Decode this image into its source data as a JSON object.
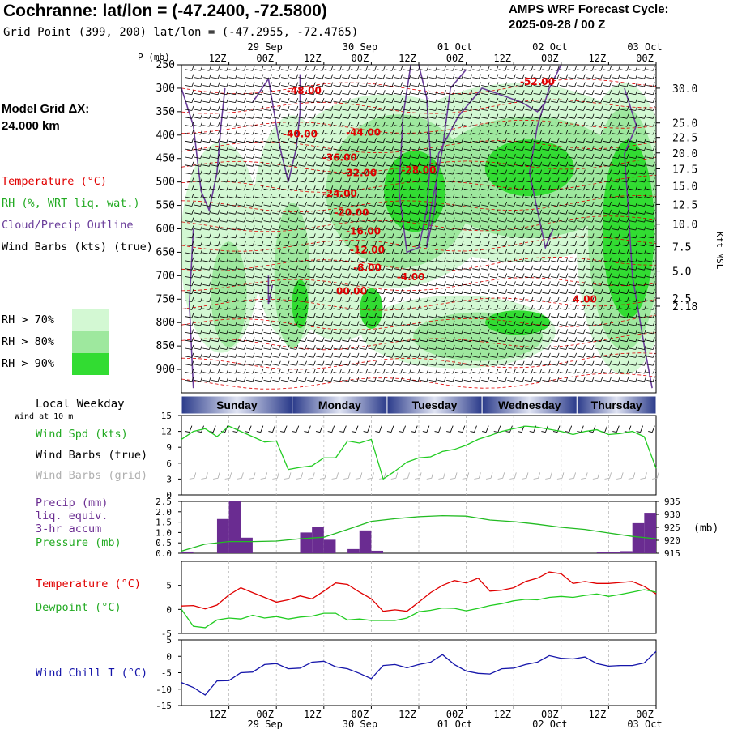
{
  "header": {
    "title": "Cochranne:  lat/lon = (-47.2400, -72.5800)",
    "subtitle": "Grid Point (399, 200) lat/lon = (-47.2955, -72.4765)",
    "cycle_label": "AMPS WRF Forecast Cycle:",
    "cycle_value": "2025-09-28 / 00  Z"
  },
  "sidebar": {
    "model_grid_label": "Model Grid ΔX:",
    "model_grid_value": " 24.000 km",
    "legend_temperature": "Temperature (°C)",
    "legend_rh": "RH (%, WRT liq. wat.)",
    "legend_cloud": "Cloud/Precip Outline",
    "legend_wind": "Wind Barbs (kts) (true)",
    "rh_key": [
      "RH > 70%",
      "RH > 80%",
      "RH > 90%"
    ],
    "local_weekday": "Local Weekday",
    "wind_at": "Wind at 10 m",
    "wind_spd": "Wind Spd (kts)",
    "wind_barbs_true": "Wind Barbs (true)",
    "wind_barbs_grid": "Wind Barbs (grid)",
    "precip": "Precip (mm)",
    "liq_equiv": "liq. equiv.",
    "accum": "3-hr accum",
    "pressure": "Pressure (mb)",
    "temp_panel": "Temperature (°C)",
    "dewpoint_panel": "Dewpoint (°C)",
    "windchill_panel": "Wind Chill T (°C)"
  },
  "colors": {
    "temperature": "#e00000",
    "rh70": "#d3f8d3",
    "rh80": "#9ee89e",
    "rh90": "#32dc32",
    "cloud": "#6a3d9a",
    "precip_bar": "#6a2c91",
    "pressure": "#22bb22",
    "dewpoint": "#22cc22",
    "windchill": "#1515aa",
    "grid_barb": "#aaaaaa"
  },
  "chart_data": [
    {
      "type": "heatmap",
      "title": "Vertical cross-section",
      "ylabel": "P (mb)",
      "y2label": "Kft MSL",
      "ylim": [
        250,
        950
      ],
      "pressure_ticks": [
        250,
        300,
        350,
        400,
        450,
        500,
        550,
        600,
        650,
        700,
        750,
        800,
        850,
        900
      ],
      "pressure_tick_labels": [
        "250",
        "300",
        "350",
        "400",
        "450",
        "500",
        "550",
        "600",
        "650",
        "700",
        "750",
        "800",
        "850",
        "900"
      ],
      "height_ticks": [
        {
          "p": 300,
          "label": "30.0"
        },
        {
          "p": 374,
          "label": "25.0"
        },
        {
          "p": 405,
          "label": "22.5"
        },
        {
          "p": 438,
          "label": "20.0"
        },
        {
          "p": 472,
          "label": "17.5"
        },
        {
          "p": 508,
          "label": "15.0"
        },
        {
          "p": 548,
          "label": "12.5"
        },
        {
          "p": 590,
          "label": "10.0"
        },
        {
          "p": 638,
          "label": "7.5"
        },
        {
          "p": 690,
          "label": "5.0"
        },
        {
          "p": 748,
          "label": "2.5"
        },
        {
          "p": 765,
          "label": "2.18"
        }
      ],
      "x_hours": [
        0,
        120
      ],
      "top_ticks": [
        {
          "h": 12,
          "label": "12Z"
        },
        {
          "h": 24,
          "label": "00Z"
        },
        {
          "h": 36,
          "label": "12Z"
        },
        {
          "h": 48,
          "label": "00Z"
        },
        {
          "h": 60,
          "label": "12Z"
        },
        {
          "h": 72,
          "label": "00Z"
        },
        {
          "h": 84,
          "label": "12Z"
        },
        {
          "h": 96,
          "label": "00Z"
        },
        {
          "h": 108,
          "label": "12Z"
        },
        {
          "h": 120,
          "label": "00Z"
        }
      ],
      "date_labels": [
        {
          "h": 24,
          "label": "29 Sep"
        },
        {
          "h": 48,
          "label": "30 Sep"
        },
        {
          "h": 72,
          "label": "01 Oct"
        },
        {
          "h": 96,
          "label": "02 Oct"
        },
        {
          "h": 120,
          "label": "03 Oct"
        }
      ],
      "temperature_contour_labels": [
        {
          "h": 31,
          "p": 312,
          "label": "-48.00"
        },
        {
          "h": 30,
          "p": 405,
          "label": "-40.00"
        },
        {
          "h": 46,
          "p": 401,
          "label": "-44.00"
        },
        {
          "h": 90,
          "p": 293,
          "label": "-52.00"
        },
        {
          "h": 40,
          "p": 455,
          "label": "-36.00"
        },
        {
          "h": 45,
          "p": 488,
          "label": "-32.00"
        },
        {
          "h": 60,
          "p": 482,
          "label": "-28.00"
        },
        {
          "h": 40,
          "p": 532,
          "label": "-24.00"
        },
        {
          "h": 43,
          "p": 572,
          "label": "-20.00"
        },
        {
          "h": 46,
          "p": 612,
          "label": "-16.00"
        },
        {
          "h": 47,
          "p": 652,
          "label": "-12.00"
        },
        {
          "h": 47,
          "p": 690,
          "label": "-8.00"
        },
        {
          "h": 58,
          "p": 710,
          "label": "-4.00"
        },
        {
          "h": 43,
          "p": 740,
          "label": "00.00"
        },
        {
          "h": 102,
          "p": 757,
          "label": "4.00"
        }
      ]
    },
    {
      "type": "line",
      "title": "Surface wind",
      "ylim": [
        0,
        15
      ],
      "y_ticks": [
        0,
        3,
        6,
        9,
        12,
        15
      ],
      "weekdays": [
        {
          "h0": 0,
          "h1": 28,
          "label": "Sunday"
        },
        {
          "h0": 28,
          "h1": 52,
          "label": "Monday"
        },
        {
          "h0": 52,
          "h1": 76,
          "label": "Tuesday"
        },
        {
          "h0": 76,
          "h1": 100,
          "label": "Wednesday"
        },
        {
          "h0": 100,
          "h1": 120,
          "label": "Thursday"
        }
      ],
      "series": [
        {
          "name": "Wind Spd (kts)",
          "x": [
            0,
            3,
            6,
            9,
            12,
            15,
            18,
            21,
            24,
            27,
            30,
            33,
            36,
            39,
            42,
            45,
            48,
            51,
            54,
            57,
            60,
            63,
            66,
            69,
            72,
            75,
            78,
            81,
            84,
            87,
            90,
            93,
            96,
            99,
            102,
            105,
            108,
            111,
            114,
            117,
            120
          ],
          "values": [
            10.5,
            12,
            12.5,
            11,
            13,
            12,
            11,
            10,
            10.2,
            4.8,
            5.2,
            5.5,
            7,
            7,
            10.2,
            9.8,
            10.5,
            3,
            4.5,
            6.2,
            7,
            7.2,
            8.2,
            8.6,
            9.4,
            10.5,
            11.2,
            12,
            12.5,
            13,
            12.8,
            12.4,
            12,
            11.4,
            12,
            12.3,
            11.4,
            11.6,
            12,
            11,
            5
          ]
        }
      ]
    },
    {
      "type": "bar",
      "title": "Precip / Pressure",
      "ylim": [
        0,
        2.5
      ],
      "y_ticks": [
        0,
        0.5,
        1.0,
        1.5,
        2.0,
        2.5
      ],
      "y_tick_labels": [
        "0.0",
        "0.5",
        "1.0",
        "1.5",
        "2.0",
        "2.5"
      ],
      "y2lim": [
        915,
        935
      ],
      "y2_ticks": [
        915,
        920,
        925,
        930,
        935
      ],
      "y2label": "(mb)",
      "precip": [
        {
          "h0": 0,
          "h1": 3,
          "value": 0.08
        },
        {
          "h0": 9,
          "h1": 12,
          "value": 1.65
        },
        {
          "h0": 12,
          "h1": 15,
          "value": 2.5
        },
        {
          "h0": 15,
          "h1": 18,
          "value": 0.75
        },
        {
          "h0": 30,
          "h1": 33,
          "value": 1.0
        },
        {
          "h0": 33,
          "h1": 36,
          "value": 1.28
        },
        {
          "h0": 36,
          "h1": 39,
          "value": 0.65
        },
        {
          "h0": 42,
          "h1": 45,
          "value": 0.2
        },
        {
          "h0": 45,
          "h1": 48,
          "value": 1.1
        },
        {
          "h0": 48,
          "h1": 51,
          "value": 0.12
        },
        {
          "h0": 105,
          "h1": 108,
          "value": 0.05
        },
        {
          "h0": 108,
          "h1": 111,
          "value": 0.07
        },
        {
          "h0": 111,
          "h1": 114,
          "value": 0.1
        },
        {
          "h0": 114,
          "h1": 117,
          "value": 1.45
        },
        {
          "h0": 117,
          "h1": 120,
          "value": 1.95
        }
      ],
      "pressure": {
        "x": [
          0,
          6,
          12,
          18,
          24,
          30,
          36,
          42,
          48,
          54,
          60,
          66,
          72,
          78,
          84,
          90,
          96,
          102,
          108,
          114,
          120
        ],
        "values": [
          915.8,
          918.5,
          919.5,
          919.5,
          919.7,
          920.6,
          921.2,
          924.2,
          927.3,
          928.3,
          929.1,
          929.5,
          929.3,
          927.8,
          927.2,
          926.2,
          925,
          924.2,
          922.8,
          921.5,
          920.6
        ]
      }
    },
    {
      "type": "line",
      "title": "Temperature / Dewpoint",
      "ylim": [
        -5,
        10
      ],
      "y_ticks": [
        -5,
        0,
        5
      ],
      "y_tick_labels": [
        "-5",
        "0",
        "5"
      ],
      "series": [
        {
          "name": "Temperature (°C)",
          "x": [
            0,
            3,
            6,
            9,
            12,
            15,
            18,
            21,
            24,
            27,
            30,
            33,
            36,
            39,
            42,
            45,
            48,
            51,
            54,
            57,
            60,
            63,
            66,
            69,
            72,
            75,
            78,
            81,
            84,
            87,
            90,
            93,
            96,
            99,
            102,
            105,
            108,
            111,
            114,
            117,
            120
          ],
          "values": [
            0.7,
            0.8,
            0.1,
            0.9,
            3,
            4.5,
            3.5,
            2.5,
            1.5,
            2,
            2.8,
            2.2,
            3.8,
            5.5,
            5.2,
            3.6,
            2.2,
            -0.4,
            -0.1,
            -0.4,
            1.5,
            3.5,
            5,
            6,
            5.5,
            6.5,
            3.8,
            4,
            4.5,
            5.8,
            6.5,
            7.8,
            7.4,
            5.4,
            5.8,
            5.4,
            5.4,
            5.6,
            5.8,
            4.8,
            3.2
          ]
        },
        {
          "name": "Dewpoint (°C)",
          "x": [
            0,
            3,
            6,
            9,
            12,
            15,
            18,
            21,
            24,
            27,
            30,
            33,
            36,
            39,
            42,
            45,
            48,
            51,
            54,
            57,
            60,
            63,
            66,
            69,
            72,
            75,
            78,
            81,
            84,
            87,
            90,
            93,
            96,
            99,
            102,
            105,
            108,
            111,
            114,
            117,
            120
          ],
          "values": [
            0,
            -3.5,
            -3.8,
            -2.2,
            -1.8,
            -2,
            -1.2,
            -1.8,
            -1.5,
            -2,
            -1.6,
            -1.4,
            -0.8,
            -0.8,
            -2.2,
            -2,
            -2.3,
            -2.3,
            -2.3,
            -1.8,
            -0.5,
            -0.2,
            0.3,
            0.2,
            -0.3,
            0.2,
            0.8,
            1.2,
            1.8,
            2.1,
            2,
            2.5,
            2.7,
            2.5,
            2.9,
            3.2,
            2.7,
            3.1,
            3.6,
            4.1,
            3.6
          ]
        }
      ]
    },
    {
      "type": "line",
      "title": "Wind Chill",
      "ylim": [
        -15,
        5
      ],
      "y_ticks": [
        -15,
        -10,
        -5,
        0,
        5
      ],
      "y_tick_labels": [
        "-15",
        "-10",
        "-5",
        "0",
        "5"
      ],
      "series": [
        {
          "name": "Wind Chill T (°C)",
          "x": [
            0,
            3,
            6,
            9,
            12,
            15,
            18,
            21,
            24,
            27,
            30,
            33,
            36,
            39,
            42,
            45,
            48,
            51,
            54,
            57,
            60,
            63,
            66,
            69,
            72,
            75,
            78,
            81,
            84,
            87,
            90,
            93,
            96,
            99,
            102,
            105,
            108,
            111,
            114,
            117,
            120
          ],
          "values": [
            -8,
            -9.5,
            -11.8,
            -7.5,
            -7.4,
            -5,
            -4.8,
            -2.5,
            -2.2,
            -3.8,
            -3.6,
            -1.8,
            -1.5,
            -3.2,
            -3.8,
            -5.2,
            -6.8,
            -2.8,
            -2.5,
            -3.5,
            -2.5,
            -1.8,
            0.5,
            -2.5,
            -4.5,
            -5.2,
            -5.4,
            -3.8,
            -3.6,
            -2.5,
            -1.8,
            0.2,
            -0.6,
            -0.8,
            -0.2,
            -2.2,
            -3,
            -2.8,
            -2.8,
            -2,
            1.5
          ]
        }
      ]
    }
  ]
}
